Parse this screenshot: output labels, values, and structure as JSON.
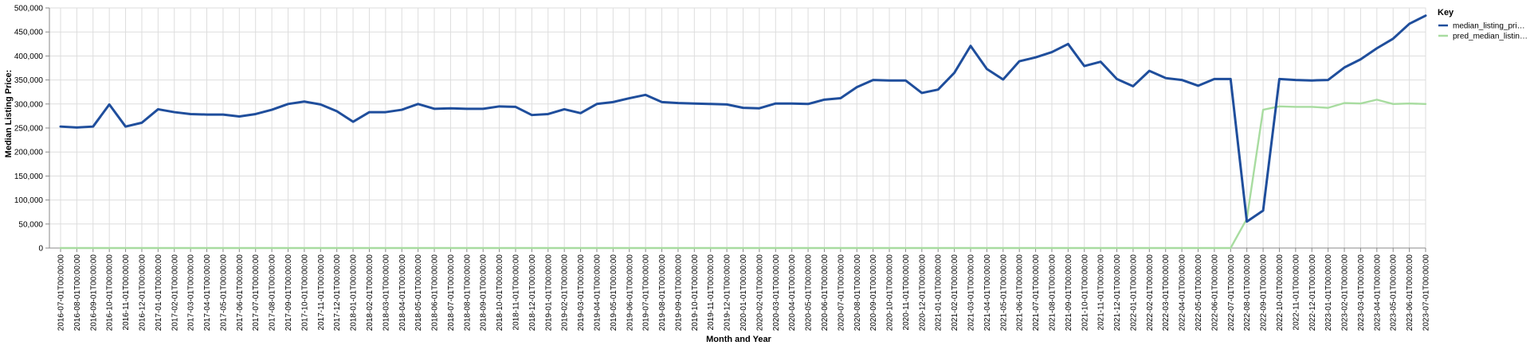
{
  "chart_data": {
    "type": "line",
    "xlabel": "Month and Year",
    "ylabel": "Median Listing Price:",
    "ylim": [
      0,
      500000
    ],
    "y_ticks": [
      0,
      50000,
      100000,
      150000,
      200000,
      250000,
      300000,
      350000,
      400000,
      450000,
      500000
    ],
    "y_tick_labels": [
      "0",
      "50,000",
      "100,000",
      "150,000",
      "200,000",
      "250,000",
      "300,000",
      "350,000",
      "400,000",
      "450,000",
      "500,000"
    ],
    "grid": true,
    "legend_position": "right",
    "legend_title": "Key",
    "x": [
      "2016-07-01T00:00:00",
      "2016-08-01T00:00:00",
      "2016-09-01T00:00:00",
      "2016-10-01T00:00:00",
      "2016-11-01T00:00:00",
      "2016-12-01T00:00:00",
      "2017-01-01T00:00:00",
      "2017-02-01T00:00:00",
      "2017-03-01T00:00:00",
      "2017-04-01T00:00:00",
      "2017-05-01T00:00:00",
      "2017-06-01T00:00:00",
      "2017-07-01T00:00:00",
      "2017-08-01T00:00:00",
      "2017-09-01T00:00:00",
      "2017-10-01T00:00:00",
      "2017-11-01T00:00:00",
      "2017-12-01T00:00:00",
      "2018-01-01T00:00:00",
      "2018-02-01T00:00:00",
      "2018-03-01T00:00:00",
      "2018-04-01T00:00:00",
      "2018-05-01T00:00:00",
      "2018-06-01T00:00:00",
      "2018-07-01T00:00:00",
      "2018-08-01T00:00:00",
      "2018-09-01T00:00:00",
      "2018-10-01T00:00:00",
      "2018-11-01T00:00:00",
      "2018-12-01T00:00:00",
      "2019-01-01T00:00:00",
      "2019-02-01T00:00:00",
      "2019-03-01T00:00:00",
      "2019-04-01T00:00:00",
      "2019-05-01T00:00:00",
      "2019-06-01T00:00:00",
      "2019-07-01T00:00:00",
      "2019-08-01T00:00:00",
      "2019-09-01T00:00:00",
      "2019-10-01T00:00:00",
      "2019-11-01T00:00:00",
      "2019-12-01T00:00:00",
      "2020-01-01T00:00:00",
      "2020-02-01T00:00:00",
      "2020-03-01T00:00:00",
      "2020-04-01T00:00:00",
      "2020-05-01T00:00:00",
      "2020-06-01T00:00:00",
      "2020-07-01T00:00:00",
      "2020-08-01T00:00:00",
      "2020-09-01T00:00:00",
      "2020-10-01T00:00:00",
      "2020-11-01T00:00:00",
      "2020-12-01T00:00:00",
      "2021-01-01T00:00:00",
      "2021-02-01T00:00:00",
      "2021-03-01T00:00:00",
      "2021-04-01T00:00:00",
      "2021-05-01T00:00:00",
      "2021-06-01T00:00:00",
      "2021-07-01T00:00:00",
      "2021-08-01T00:00:00",
      "2021-09-01T00:00:00",
      "2021-10-01T00:00:00",
      "2021-11-01T00:00:00",
      "2021-12-01T00:00:00",
      "2022-01-01T00:00:00",
      "2022-02-01T00:00:00",
      "2022-03-01T00:00:00",
      "2022-04-01T00:00:00",
      "2022-05-01T00:00:00",
      "2022-06-01T00:00:00",
      "2022-07-01T00:00:00",
      "2022-08-01T00:00:00",
      "2022-09-01T00:00:00",
      "2022-10-01T00:00:00",
      "2022-11-01T00:00:00",
      "2022-12-01T00:00:00",
      "2023-01-01T00:00:00",
      "2023-02-01T00:00:00",
      "2023-03-01T00:00:00",
      "2023-04-01T00:00:00",
      "2023-05-01T00:00:00",
      "2023-06-01T00:00:00",
      "2023-07-01T00:00:00"
    ],
    "series": [
      {
        "name": "median_listing_pri…",
        "color": "#1f4e9c",
        "values": [
          253000,
          251000,
          253000,
          299000,
          253000,
          261000,
          289000,
          283000,
          279000,
          278000,
          278000,
          274000,
          279000,
          288000,
          300000,
          305000,
          299000,
          285000,
          263000,
          283000,
          283000,
          288000,
          300000,
          290000,
          291000,
          290000,
          290000,
          295000,
          294000,
          277000,
          279000,
          289000,
          281000,
          300000,
          304000,
          312000,
          319000,
          304000,
          302000,
          301000,
          300000,
          299000,
          292000,
          291000,
          301000,
          301000,
          300000,
          309000,
          312000,
          335000,
          350000,
          349000,
          349000,
          323000,
          330000,
          365000,
          421000,
          373000,
          351000,
          389000,
          397000,
          408000,
          425000,
          379000,
          388000,
          352000,
          337000,
          369000,
          354000,
          350000,
          338000,
          352000,
          352000,
          55000,
          78000,
          352000,
          350000,
          349000,
          350000,
          376000,
          393000,
          416000,
          436000,
          467000,
          484000
        ]
      },
      {
        "name": "pred_median_listin…",
        "color": "#a8dca0",
        "values": [
          0,
          0,
          0,
          0,
          0,
          0,
          0,
          0,
          0,
          0,
          0,
          0,
          0,
          0,
          0,
          0,
          0,
          0,
          0,
          0,
          0,
          0,
          0,
          0,
          0,
          0,
          0,
          0,
          0,
          0,
          0,
          0,
          0,
          0,
          0,
          0,
          0,
          0,
          0,
          0,
          0,
          0,
          0,
          0,
          0,
          0,
          0,
          0,
          0,
          0,
          0,
          0,
          0,
          0,
          0,
          0,
          0,
          0,
          0,
          0,
          0,
          0,
          0,
          0,
          0,
          0,
          0,
          0,
          0,
          0,
          0,
          0,
          0,
          61000,
          288000,
          295000,
          294000,
          294000,
          292000,
          302000,
          301000,
          309000,
          300000,
          301000,
          300000
        ]
      }
    ]
  }
}
